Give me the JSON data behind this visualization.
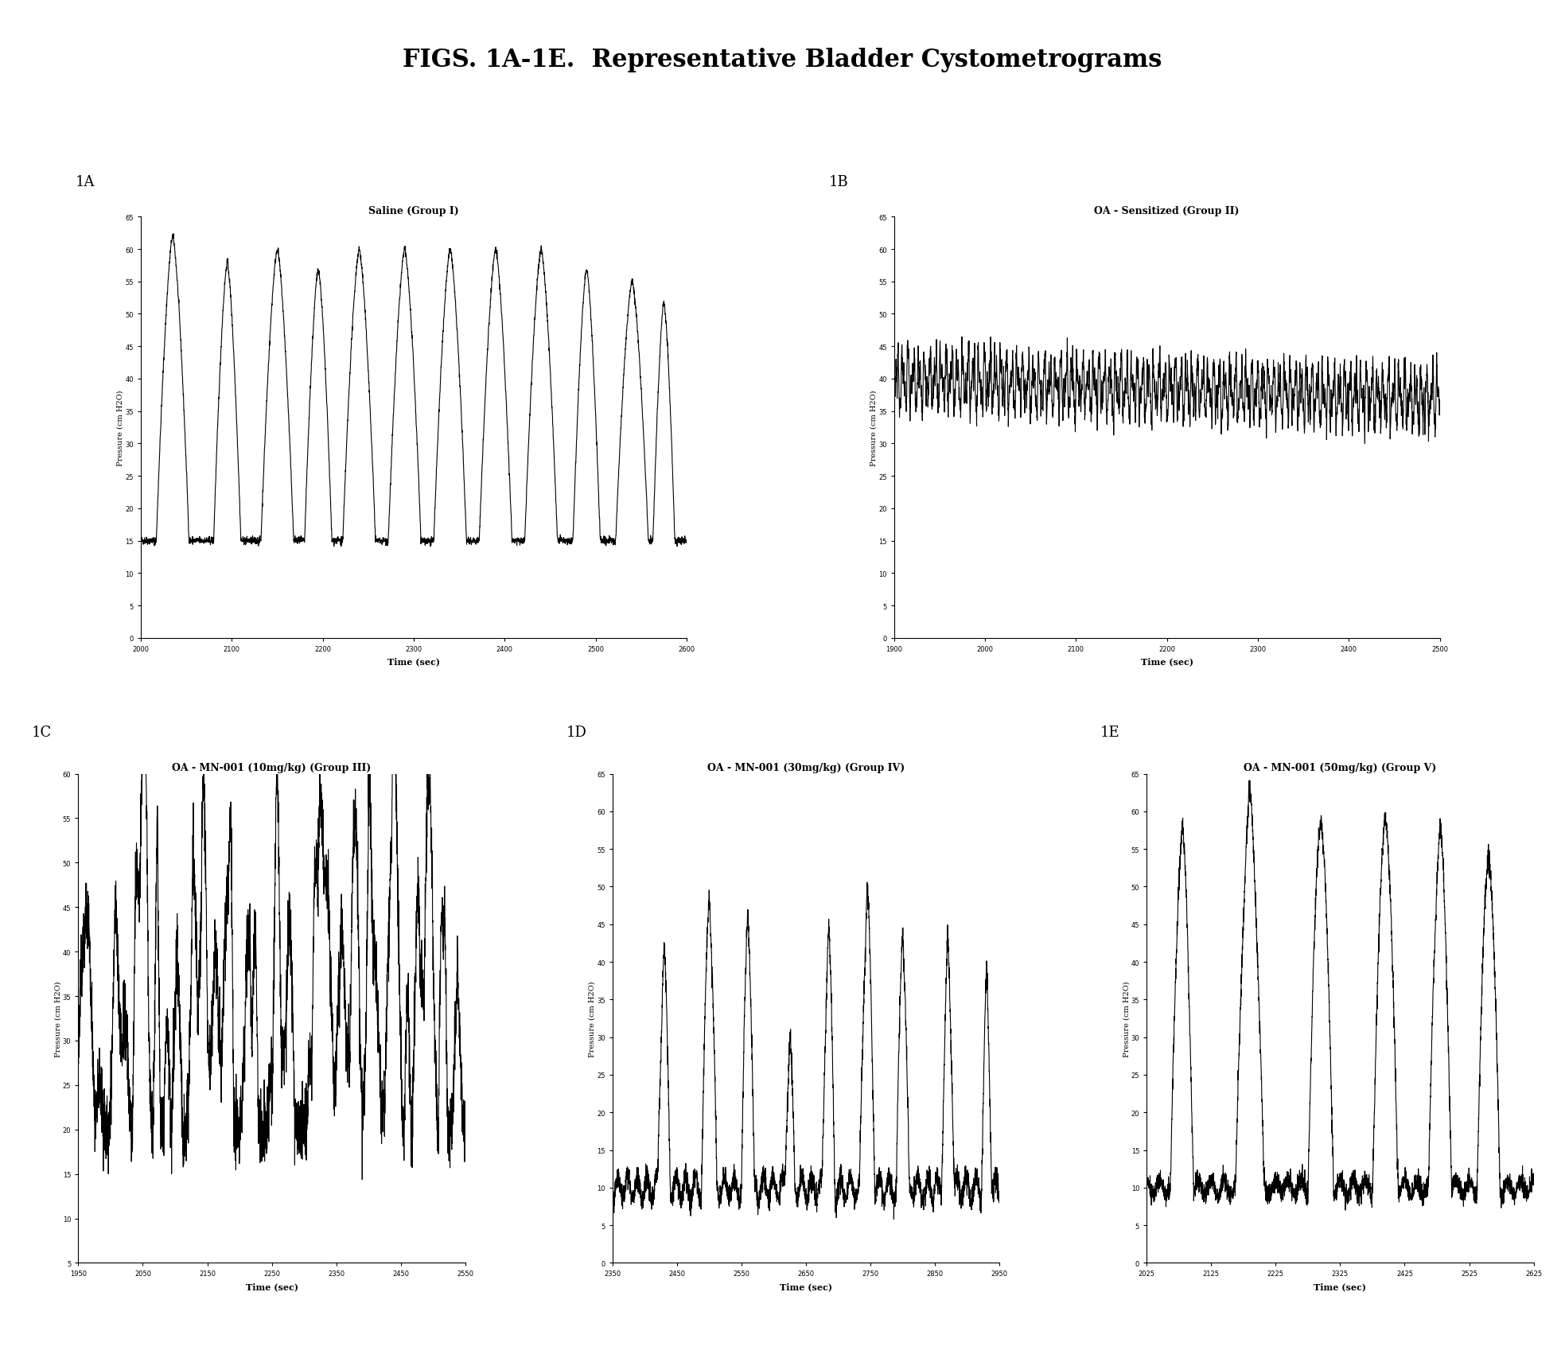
{
  "title": "FIGS. 1A-1E.  Representative Bladder Cystometrograms",
  "title_fontsize": 22,
  "title_fontweight": "bold",
  "background_color": "#ffffff",
  "line_color": "#000000",
  "line_width": 0.8,
  "plots": [
    {
      "label": "1A",
      "subtitle": "Saline (Group I)",
      "xmin": 2000,
      "xmax": 2600,
      "ymin": 0,
      "ymax": 65,
      "yticks": [
        0,
        5,
        10,
        15,
        20,
        25,
        30,
        35,
        40,
        45,
        50,
        55,
        60,
        65
      ],
      "xticks": [
        2000,
        2100,
        2200,
        2300,
        2400,
        2500,
        2600
      ],
      "xlabel": "Time (sec)",
      "ylabel": "Pressure (cm H2O)"
    },
    {
      "label": "1B",
      "subtitle": "OA - Sensitized (Group II)",
      "xmin": 1900,
      "xmax": 2500,
      "ymin": 0,
      "ymax": 65,
      "yticks": [
        0,
        5,
        10,
        15,
        20,
        25,
        30,
        35,
        40,
        45,
        50,
        55,
        60,
        65
      ],
      "xticks": [
        1900,
        2000,
        2100,
        2200,
        2300,
        2400,
        2500
      ],
      "xlabel": "Time (sec)",
      "ylabel": "Pressure (cm H2O)"
    },
    {
      "label": "1C",
      "subtitle": "OA - MN-001 (10mg/kg) (Group III)",
      "xmin": 1950,
      "xmax": 2550,
      "ymin": 5,
      "ymax": 60,
      "yticks": [
        5,
        10,
        15,
        20,
        25,
        30,
        35,
        40,
        45,
        50,
        55,
        60
      ],
      "xticks": [
        1950,
        2050,
        2150,
        2250,
        2350,
        2450,
        2550
      ],
      "xlabel": "Time (sec)",
      "ylabel": "Pressure (cm H2O)"
    },
    {
      "label": "1D",
      "subtitle": "OA - MN-001 (30mg/kg) (Group IV)",
      "xmin": 2350,
      "xmax": 2950,
      "ymin": 0,
      "ymax": 65,
      "yticks": [
        0,
        5,
        10,
        15,
        20,
        25,
        30,
        35,
        40,
        45,
        50,
        55,
        60,
        65
      ],
      "xticks": [
        2350,
        2450,
        2550,
        2650,
        2750,
        2850,
        2950
      ],
      "xlabel": "Time (sec)",
      "ylabel": "Pressure (cm H2O)"
    },
    {
      "label": "1E",
      "subtitle": "OA - MN-001 (50mg/kg) (Group V)",
      "xmin": 2025,
      "xmax": 2625,
      "ymin": 0,
      "ymax": 65,
      "yticks": [
        0,
        5,
        10,
        15,
        20,
        25,
        30,
        35,
        40,
        45,
        50,
        55,
        60,
        65
      ],
      "xticks": [
        2025,
        2125,
        2225,
        2325,
        2425,
        2525,
        2625
      ],
      "xlabel": "Time (sec)",
      "ylabel": "Pressure (cm H2O)"
    }
  ]
}
